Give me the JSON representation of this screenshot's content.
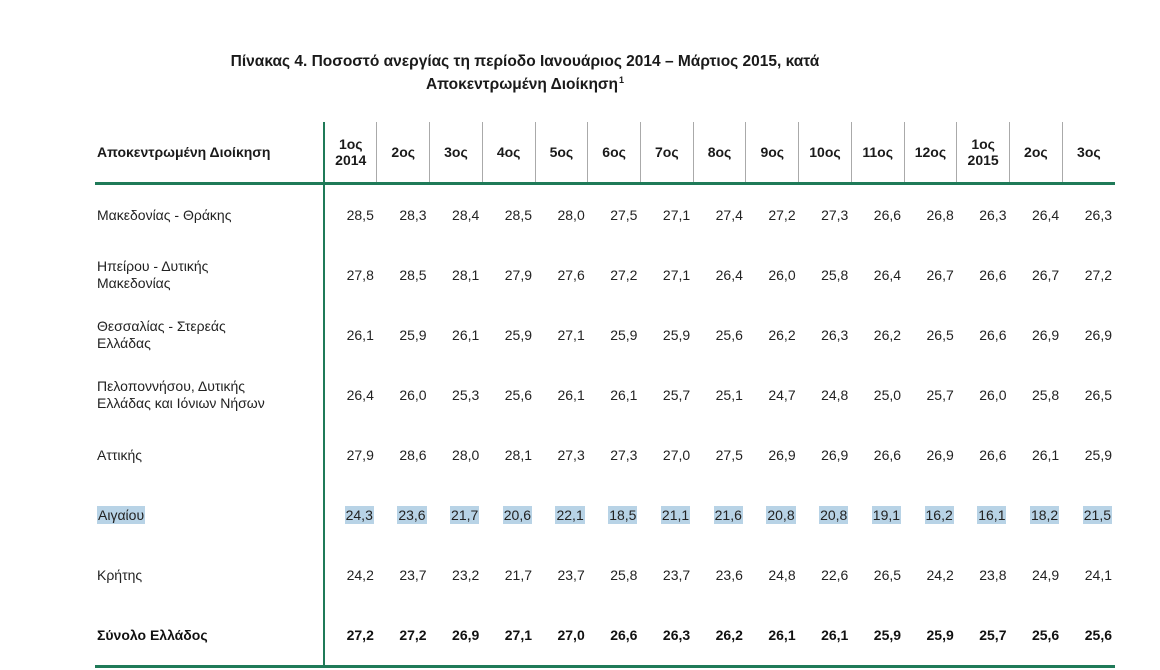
{
  "title": {
    "line1": "Πίνακας 4. Ποσοστό ανεργίας τη περίοδο Ιανουάριος 2014 – Μάρτιος 2015, κατά",
    "line2": "Αποκεντρωμένη Διοίκηση",
    "footnote": "1"
  },
  "table": {
    "header_first": "Αποκεντρωμένη Διοίκηση",
    "columns": [
      {
        "line1": "1ος",
        "line2": "2014"
      },
      {
        "line1": "2ος",
        "line2": ""
      },
      {
        "line1": "3ος",
        "line2": ""
      },
      {
        "line1": "4ος",
        "line2": ""
      },
      {
        "line1": "5ος",
        "line2": ""
      },
      {
        "line1": "6ος",
        "line2": ""
      },
      {
        "line1": "7ος",
        "line2": ""
      },
      {
        "line1": "8ος",
        "line2": ""
      },
      {
        "line1": "9ος",
        "line2": ""
      },
      {
        "line1": "10ος",
        "line2": ""
      },
      {
        "line1": "11ος",
        "line2": ""
      },
      {
        "line1": "12ος",
        "line2": ""
      },
      {
        "line1": "1ος",
        "line2": "2015"
      },
      {
        "line1": "2ος",
        "line2": ""
      },
      {
        "line1": "3ος",
        "line2": ""
      }
    ],
    "rows": [
      {
        "line1": "Μακεδονίας - Θράκης",
        "line2": "",
        "values": [
          "28,5",
          "28,3",
          "28,4",
          "28,5",
          "28,0",
          "27,5",
          "27,1",
          "27,4",
          "27,2",
          "27,3",
          "26,6",
          "26,8",
          "26,3",
          "26,4",
          "26,3"
        ]
      },
      {
        "line1": "Ηπείρου - Δυτικής",
        "line2": "Μακεδονίας",
        "values": [
          "27,8",
          "28,5",
          "28,1",
          "27,9",
          "27,6",
          "27,2",
          "27,1",
          "26,4",
          "26,0",
          "25,8",
          "26,4",
          "26,7",
          "26,6",
          "26,7",
          "27,2"
        ]
      },
      {
        "line1": "Θεσσαλίας - Στερεάς",
        "line2": "Ελλάδας",
        "values": [
          "26,1",
          "25,9",
          "26,1",
          "25,9",
          "27,1",
          "25,9",
          "25,9",
          "25,6",
          "26,2",
          "26,3",
          "26,2",
          "26,5",
          "26,6",
          "26,9",
          "26,9"
        ]
      },
      {
        "line1": "Πελοποννήσου, Δυτικής",
        "line2": "Ελλάδας και Ιόνιων Νήσων",
        "values": [
          "26,4",
          "26,0",
          "25,3",
          "25,6",
          "26,1",
          "26,1",
          "25,7",
          "25,1",
          "24,7",
          "24,8",
          "25,0",
          "25,7",
          "26,0",
          "25,8",
          "26,5"
        ]
      },
      {
        "line1": "Αττικής",
        "line2": "",
        "values": [
          "27,9",
          "28,6",
          "28,0",
          "28,1",
          "27,3",
          "27,3",
          "27,0",
          "27,5",
          "26,9",
          "26,9",
          "26,6",
          "26,9",
          "26,6",
          "26,1",
          "25,9"
        ]
      },
      {
        "line1": "Αιγαίου",
        "line2": "",
        "highlighted": true,
        "values": [
          "24,3",
          "23,6",
          "21,7",
          "20,6",
          "22,1",
          "18,5",
          "21,1",
          "21,6",
          "20,8",
          "20,8",
          "19,1",
          "16,2",
          "16,1",
          "18,2",
          "21,5"
        ]
      },
      {
        "line1": "Κρήτης",
        "line2": "",
        "values": [
          "24,2",
          "23,7",
          "23,2",
          "21,7",
          "23,7",
          "25,8",
          "23,7",
          "23,6",
          "24,8",
          "22,6",
          "26,5",
          "24,2",
          "23,8",
          "24,9",
          "24,1"
        ]
      }
    ],
    "total": {
      "label": "Σύνολο Ελλάδος",
      "values": [
        "27,2",
        "27,2",
        "26,9",
        "27,1",
        "27,0",
        "26,6",
        "26,3",
        "26,2",
        "26,1",
        "26,1",
        "25,9",
        "25,9",
        "25,7",
        "25,6",
        "25,6"
      ]
    }
  },
  "colors": {
    "rule": "#1f7a58",
    "highlight": "#b8d3e6"
  }
}
